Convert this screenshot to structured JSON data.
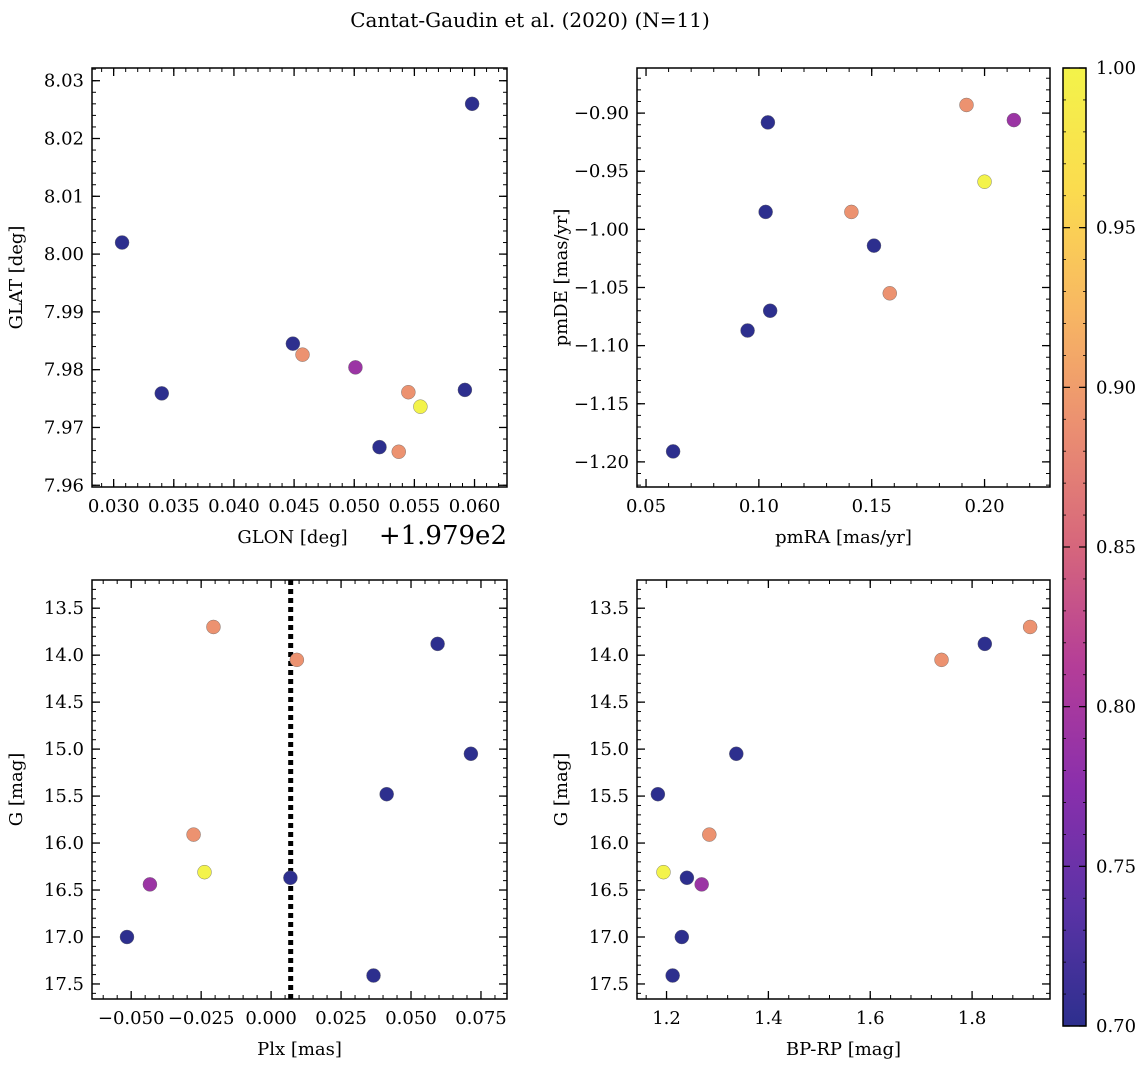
{
  "figure": {
    "title": "Cantat-Gaudin et al. (2020) (N=11)"
  },
  "colorbar": {
    "range": [
      0.7,
      1.0
    ],
    "ticks": [
      "0.70",
      "0.75",
      "0.80",
      "0.85",
      "0.90",
      "0.95",
      "1.00"
    ],
    "stops": [
      "#2d2f8e",
      "#5b33a6",
      "#8a2fac",
      "#b43d98",
      "#d6667c",
      "#eb8f71",
      "#f8b862",
      "#fbdc4e",
      "#f3f34a"
    ]
  },
  "chart_data": [
    {
      "type": "scatter",
      "id": "radec",
      "xlabel": "GLON [deg]",
      "ylabel": "GLAT [deg]",
      "x_offset_label": "+1.979e2",
      "xlim": [
        0.0282,
        0.0627
      ],
      "ylim": [
        7.9597,
        8.0322
      ],
      "y_inverted": false,
      "xticks": [
        0.03,
        0.035,
        0.04,
        0.045,
        0.05,
        0.055,
        0.06
      ],
      "xtick_labels": [
        "0.030",
        "0.035",
        "0.040",
        "0.045",
        "0.050",
        "0.055",
        "0.060"
      ],
      "yticks": [
        7.96,
        7.97,
        7.98,
        7.99,
        8.0,
        8.01,
        8.02,
        8.03
      ],
      "ytick_labels": [
        "7.96",
        "7.97",
        "7.98",
        "7.99",
        "8.00",
        "8.01",
        "8.02",
        "8.03"
      ],
      "points": [
        {
          "x": 0.0598,
          "y": 8.026,
          "c": 0.7
        },
        {
          "x": 0.0307,
          "y": 8.002,
          "c": 0.7
        },
        {
          "x": 0.0449,
          "y": 7.9845,
          "c": 0.7
        },
        {
          "x": 0.0457,
          "y": 7.9826,
          "c": 0.89
        },
        {
          "x": 0.0501,
          "y": 7.9804,
          "c": 0.79
        },
        {
          "x": 0.034,
          "y": 7.9759,
          "c": 0.7
        },
        {
          "x": 0.0545,
          "y": 7.9761,
          "c": 0.89
        },
        {
          "x": 0.0592,
          "y": 7.9765,
          "c": 0.7
        },
        {
          "x": 0.0555,
          "y": 7.9736,
          "c": 1.0
        },
        {
          "x": 0.0521,
          "y": 7.9666,
          "c": 0.7
        },
        {
          "x": 0.0537,
          "y": 7.9658,
          "c": 0.89
        }
      ]
    },
    {
      "type": "scatter",
      "id": "pm",
      "xlabel": "pmRA [mas/yr]",
      "ylabel": "pmDE [mas/yr]",
      "x_offset_label": "",
      "xlim": [
        0.046,
        0.229
      ],
      "ylim": [
        -1.2216,
        -0.8612
      ],
      "y_inverted": false,
      "xticks": [
        0.05,
        0.1,
        0.15,
        0.2
      ],
      "xtick_labels": [
        "0.05",
        "0.10",
        "0.15",
        "0.20"
      ],
      "yticks": [
        -1.2,
        -1.15,
        -1.1,
        -1.05,
        -1.0,
        -0.95,
        -0.9
      ],
      "ytick_labels": [
        "−1.20",
        "−1.15",
        "−1.10",
        "−1.05",
        "−1.00",
        "−0.95",
        "−0.90"
      ],
      "points": [
        {
          "x": 0.192,
          "y": -0.893,
          "c": 0.89
        },
        {
          "x": 0.213,
          "y": -0.906,
          "c": 0.79
        },
        {
          "x": 0.104,
          "y": -0.908,
          "c": 0.7
        },
        {
          "x": 0.2,
          "y": -0.959,
          "c": 1.0
        },
        {
          "x": 0.103,
          "y": -0.985,
          "c": 0.7
        },
        {
          "x": 0.141,
          "y": -0.985,
          "c": 0.89
        },
        {
          "x": 0.151,
          "y": -1.014,
          "c": 0.7
        },
        {
          "x": 0.158,
          "y": -1.055,
          "c": 0.89
        },
        {
          "x": 0.105,
          "y": -1.07,
          "c": 0.7
        },
        {
          "x": 0.095,
          "y": -1.087,
          "c": 0.7
        },
        {
          "x": 0.062,
          "y": -1.191,
          "c": 0.7
        }
      ]
    },
    {
      "type": "scatter",
      "id": "plx",
      "xlabel": "Plx [mas]",
      "ylabel": "G [mag]",
      "x_offset_label": "",
      "xlim": [
        -0.064,
        0.0843
      ],
      "ylim": [
        17.66,
        13.2
      ],
      "y_inverted": true,
      "vline": 0.007,
      "xticks": [
        -0.05,
        -0.025,
        0.0,
        0.025,
        0.05,
        0.075
      ],
      "xtick_labels": [
        "−0.050",
        "−0.025",
        "0.000",
        "0.025",
        "0.050",
        "0.075"
      ],
      "yticks": [
        13.5,
        14.0,
        14.5,
        15.0,
        15.5,
        16.0,
        16.5,
        17.0,
        17.5
      ],
      "ytick_labels": [
        "13.5",
        "14.0",
        "14.5",
        "15.0",
        "15.5",
        "16.0",
        "16.5",
        "17.0",
        "17.5"
      ],
      "points": [
        {
          "x": -0.0206,
          "y": 13.7,
          "c": 0.89
        },
        {
          "x": 0.0595,
          "y": 13.88,
          "c": 0.7
        },
        {
          "x": 0.0092,
          "y": 14.05,
          "c": 0.89
        },
        {
          "x": 0.0714,
          "y": 15.05,
          "c": 0.7
        },
        {
          "x": 0.0413,
          "y": 15.48,
          "c": 0.7
        },
        {
          "x": -0.0277,
          "y": 15.91,
          "c": 0.89
        },
        {
          "x": -0.0238,
          "y": 16.31,
          "c": 1.0
        },
        {
          "x": 0.0069,
          "y": 16.37,
          "c": 0.7
        },
        {
          "x": -0.0433,
          "y": 16.44,
          "c": 0.79
        },
        {
          "x": -0.0515,
          "y": 17.0,
          "c": 0.7
        },
        {
          "x": 0.0366,
          "y": 17.41,
          "c": 0.7
        }
      ]
    },
    {
      "type": "scatter",
      "id": "cmd",
      "xlabel": "BP-RP [mag]",
      "ylabel": "G [mag]",
      "x_offset_label": "",
      "xlim": [
        1.142,
        1.953
      ],
      "ylim": [
        17.66,
        13.2
      ],
      "y_inverted": true,
      "xticks": [
        1.2,
        1.4,
        1.6,
        1.8
      ],
      "xtick_labels": [
        "1.2",
        "1.4",
        "1.6",
        "1.8"
      ],
      "yticks": [
        13.5,
        14.0,
        14.5,
        15.0,
        15.5,
        16.0,
        16.5,
        17.0,
        17.5
      ],
      "ytick_labels": [
        "13.5",
        "14.0",
        "14.5",
        "15.0",
        "15.5",
        "16.0",
        "16.5",
        "17.0",
        "17.5"
      ],
      "points": [
        {
          "x": 1.914,
          "y": 13.7,
          "c": 0.89
        },
        {
          "x": 1.825,
          "y": 13.88,
          "c": 0.7
        },
        {
          "x": 1.74,
          "y": 14.05,
          "c": 0.89
        },
        {
          "x": 1.337,
          "y": 15.05,
          "c": 0.7
        },
        {
          "x": 1.183,
          "y": 15.48,
          "c": 0.7
        },
        {
          "x": 1.284,
          "y": 15.91,
          "c": 0.89
        },
        {
          "x": 1.194,
          "y": 16.31,
          "c": 1.0
        },
        {
          "x": 1.24,
          "y": 16.37,
          "c": 0.7
        },
        {
          "x": 1.269,
          "y": 16.44,
          "c": 0.79
        },
        {
          "x": 1.23,
          "y": 17.0,
          "c": 0.7
        },
        {
          "x": 1.212,
          "y": 17.41,
          "c": 0.7
        }
      ]
    }
  ]
}
